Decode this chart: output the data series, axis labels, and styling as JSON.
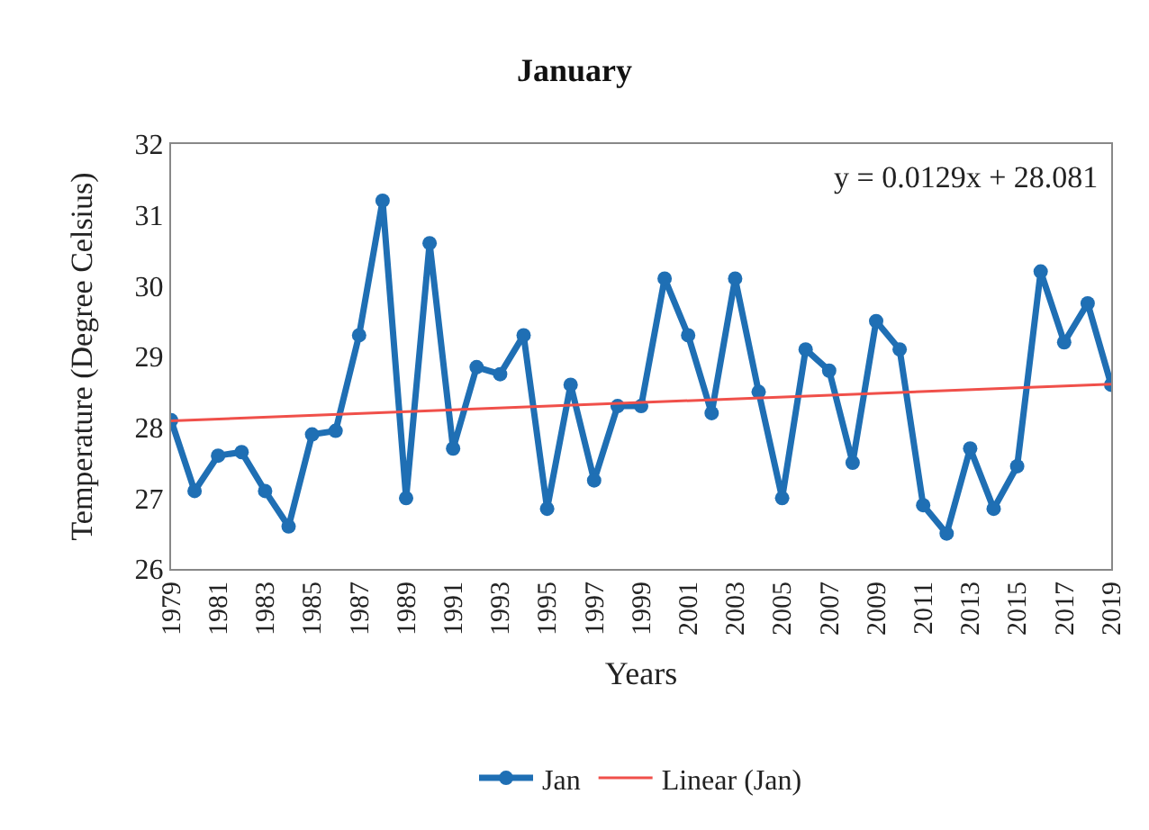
{
  "chart_data": {
    "type": "line",
    "title": "January",
    "xlabel": "Years",
    "ylabel": "Temperature (Degree Celsius)",
    "x": [
      1979,
      1980,
      1981,
      1982,
      1983,
      1984,
      1985,
      1986,
      1987,
      1988,
      1989,
      1990,
      1991,
      1992,
      1993,
      1994,
      1995,
      1996,
      1997,
      1998,
      1999,
      2000,
      2001,
      2002,
      2003,
      2004,
      2005,
      2006,
      2007,
      2008,
      2009,
      2010,
      2011,
      2012,
      2013,
      2014,
      2015,
      2016,
      2017,
      2018,
      2019
    ],
    "series": [
      {
        "name": "Jan",
        "color": "#1f6fb4",
        "marker": "circle",
        "values": [
          28.1,
          27.1,
          27.6,
          27.65,
          27.1,
          26.6,
          27.9,
          27.95,
          29.3,
          31.2,
          27.0,
          30.6,
          27.7,
          28.85,
          28.75,
          29.3,
          26.85,
          28.6,
          27.25,
          28.3,
          28.3,
          30.1,
          29.3,
          28.2,
          30.1,
          28.5,
          27.0,
          29.1,
          28.8,
          27.5,
          29.5,
          29.1,
          26.9,
          26.5,
          27.7,
          26.85,
          27.45,
          30.2,
          29.2,
          29.75,
          28.6
        ]
      },
      {
        "name": "Linear (Jan)",
        "type": "line",
        "color": "#f0504a",
        "marker": "none",
        "x": [
          1979,
          2019
        ],
        "values": [
          28.09,
          28.61
        ]
      }
    ],
    "annotations": [
      "y = 0.0129x + 28.081"
    ],
    "xlim": [
      1979,
      2019
    ],
    "xticks": [
      1979,
      1981,
      1983,
      1985,
      1987,
      1989,
      1991,
      1993,
      1995,
      1997,
      1999,
      2001,
      2003,
      2005,
      2007,
      2009,
      2011,
      2013,
      2015,
      2017,
      2019
    ],
    "ylim": [
      26,
      32
    ],
    "yticks": [
      26,
      27,
      28,
      29,
      30,
      31,
      32
    ],
    "grid": false,
    "legend": "bottom"
  }
}
